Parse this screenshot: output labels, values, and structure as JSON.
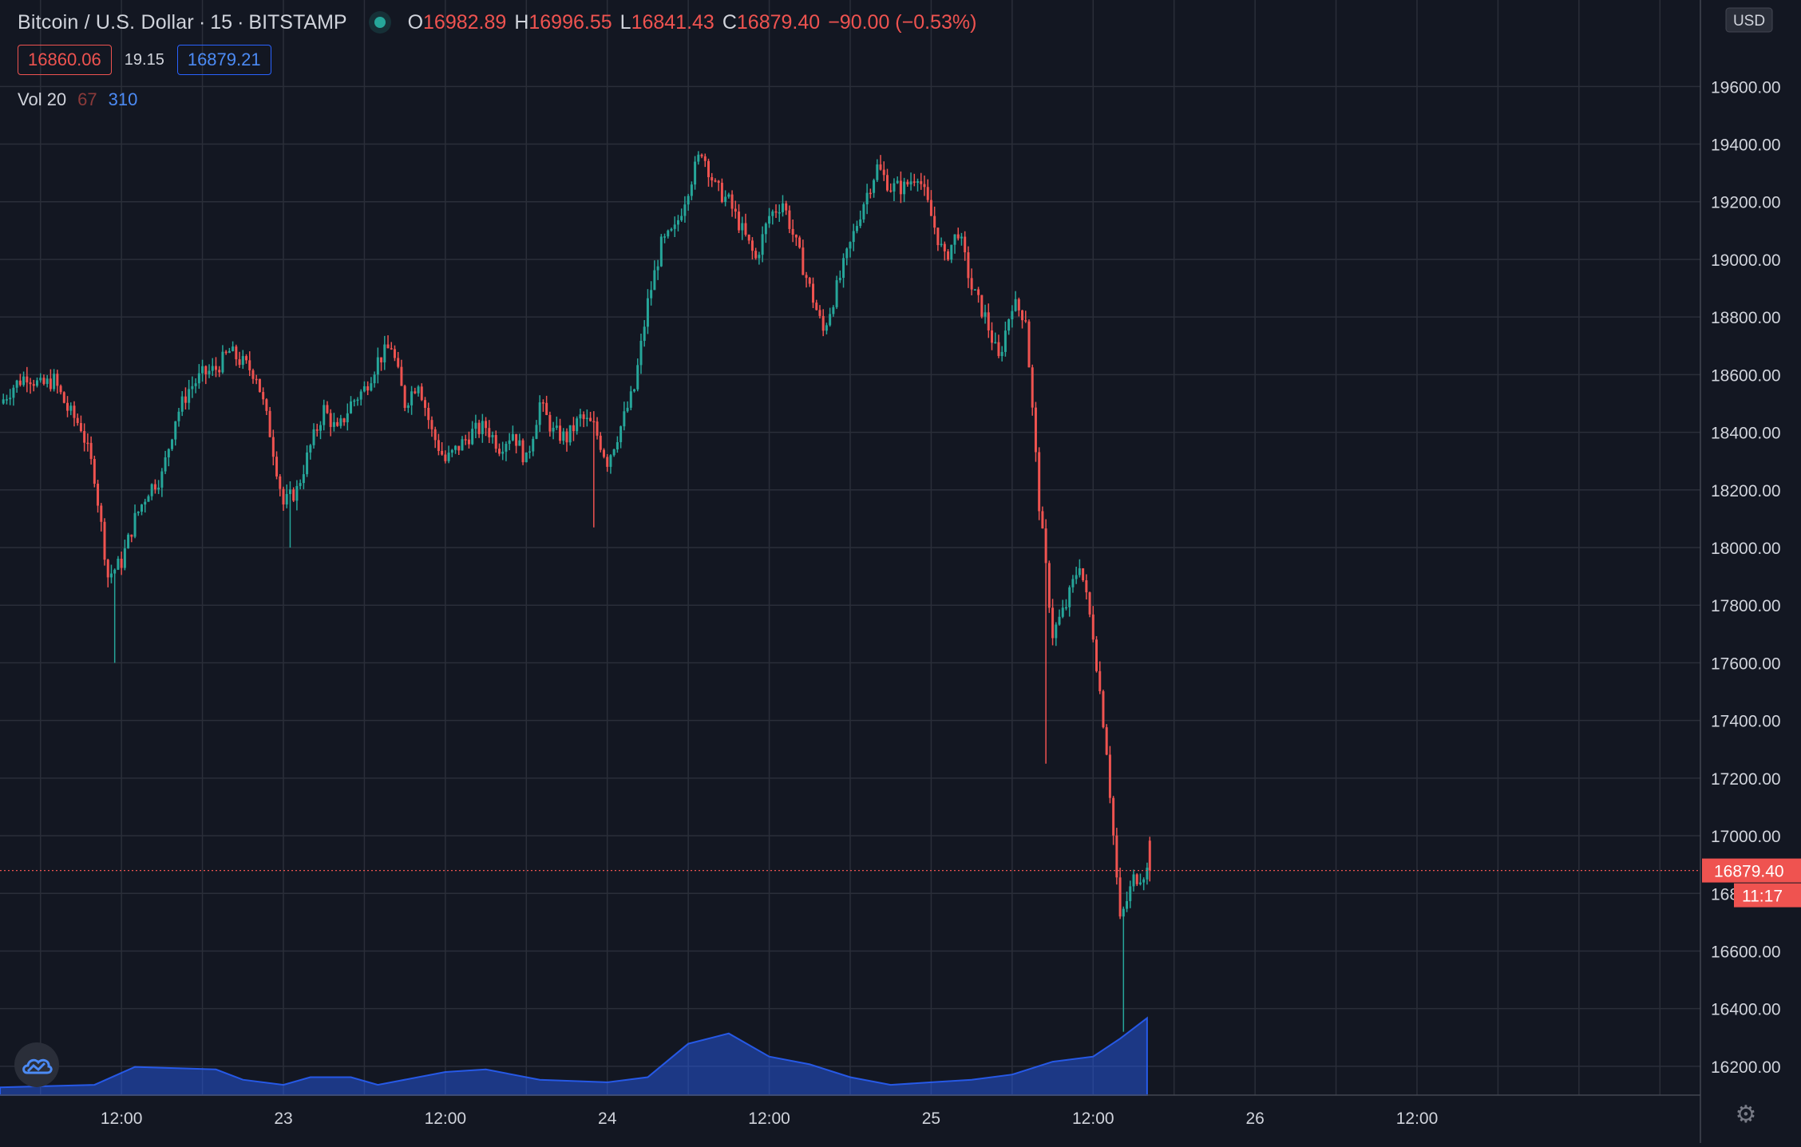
{
  "header": {
    "symbol": "Bitcoin / U.S. Dollar",
    "interval": "15",
    "exchange": "BITSTAMP",
    "open_label": "O",
    "open": "16982.89",
    "high_label": "H",
    "high": "16996.55",
    "low_label": "L",
    "low": "16841.43",
    "close_label": "C",
    "close": "16879.40",
    "change": "−90.00 (−0.53%)"
  },
  "trade": {
    "sell": "16860.06",
    "spread": "19.15",
    "buy": "16879.21"
  },
  "volume_legend": {
    "label": "Vol 20",
    "value1": "67",
    "value2": "310"
  },
  "axis": {
    "currency": "USD",
    "current_price": "16879.40",
    "countdown": "11:17"
  },
  "colors": {
    "up": "#26a69a",
    "down": "#ef5350",
    "volume": "#2962ff",
    "background": "#131722",
    "grid": "#2a2e39"
  },
  "icons": {
    "logo": "tradingview-cloud-icon",
    "settings": "gear-icon"
  },
  "chart_data": {
    "type": "candlestick",
    "ylim": [
      16100,
      19900
    ],
    "yticks": [
      16200,
      16400,
      16600,
      16800,
      17000,
      17200,
      17400,
      17600,
      17800,
      18000,
      18200,
      18400,
      18600,
      18800,
      19000,
      19200,
      19400,
      19600
    ],
    "ytick_labels": [
      "16200.00",
      "16400.00",
      "16600.00",
      "16800.00",
      "17000.00",
      "17200.00",
      "17400.00",
      "17600.00",
      "17800.00",
      "18000.00",
      "18200.00",
      "18400.00",
      "18600.00",
      "18800.00",
      "19000.00",
      "19200.00",
      "19400.00",
      "19600.00"
    ],
    "xtick_labels": [
      "12:00",
      "23",
      "12:00",
      "24",
      "12:00",
      "25",
      "12:00",
      "26",
      "12:00"
    ],
    "x_range_hours": [
      3,
      129
    ],
    "xtick_hours": [
      12,
      24,
      36,
      48,
      60,
      72,
      84,
      96,
      108
    ],
    "price_path": [
      [
        3,
        18500
      ],
      [
        4,
        18560
      ],
      [
        5,
        18600
      ],
      [
        6,
        18560
      ],
      [
        7,
        18580
      ],
      [
        8,
        18480
      ],
      [
        9,
        18420
      ],
      [
        10,
        18250
      ],
      [
        11,
        17900
      ],
      [
        12,
        17950
      ],
      [
        13,
        18100
      ],
      [
        14,
        18200
      ],
      [
        15,
        18250
      ],
      [
        16,
        18450
      ],
      [
        17,
        18550
      ],
      [
        18,
        18600
      ],
      [
        19,
        18620
      ],
      [
        20,
        18680
      ],
      [
        21,
        18640
      ],
      [
        22,
        18600
      ],
      [
        23,
        18400
      ],
      [
        24,
        18150
      ],
      [
        25,
        18200
      ],
      [
        26,
        18350
      ],
      [
        27,
        18480
      ],
      [
        28,
        18400
      ],
      [
        29,
        18500
      ],
      [
        30,
        18550
      ],
      [
        31,
        18650
      ],
      [
        32,
        18700
      ],
      [
        33,
        18500
      ],
      [
        34,
        18580
      ],
      [
        35,
        18400
      ],
      [
        36,
        18300
      ],
      [
        37,
        18350
      ],
      [
        38,
        18400
      ],
      [
        39,
        18420
      ],
      [
        40,
        18350
      ],
      [
        41,
        18400
      ],
      [
        42,
        18300
      ],
      [
        43,
        18500
      ],
      [
        44,
        18400
      ],
      [
        45,
        18380
      ],
      [
        46,
        18450
      ],
      [
        47,
        18420
      ],
      [
        48,
        18300
      ],
      [
        49,
        18420
      ],
      [
        50,
        18550
      ],
      [
        51,
        18850
      ],
      [
        52,
        19050
      ],
      [
        53,
        19100
      ],
      [
        54,
        19250
      ],
      [
        55,
        19380
      ],
      [
        56,
        19250
      ],
      [
        57,
        19200
      ],
      [
        58,
        19100
      ],
      [
        59,
        19000
      ],
      [
        60,
        19150
      ],
      [
        61,
        19200
      ],
      [
        62,
        19050
      ],
      [
        63,
        18900
      ],
      [
        64,
        18750
      ],
      [
        65,
        18900
      ],
      [
        66,
        19050
      ],
      [
        67,
        19200
      ],
      [
        68,
        19320
      ],
      [
        69,
        19250
      ],
      [
        70,
        19250
      ],
      [
        71,
        19300
      ],
      [
        72,
        19150
      ],
      [
        73,
        19000
      ],
      [
        74,
        19100
      ],
      [
        75,
        18900
      ],
      [
        76,
        18800
      ],
      [
        77,
        18650
      ],
      [
        78,
        18850
      ],
      [
        79,
        18800
      ],
      [
        80,
        18150
      ],
      [
        81,
        17700
      ],
      [
        82,
        17800
      ],
      [
        83,
        17950
      ],
      [
        84,
        17700
      ],
      [
        85,
        17300
      ],
      [
        86,
        16700
      ],
      [
        87,
        16850
      ],
      [
        88,
        16879.4
      ]
    ],
    "volume": {
      "series": [
        [
          3,
          6
        ],
        [
          10,
          8
        ],
        [
          13,
          22
        ],
        [
          19,
          20
        ],
        [
          21,
          12
        ],
        [
          24,
          8
        ],
        [
          26,
          14
        ],
        [
          29,
          14
        ],
        [
          31,
          8
        ],
        [
          36,
          18
        ],
        [
          39,
          20
        ],
        [
          43,
          12
        ],
        [
          48,
          10
        ],
        [
          51,
          14
        ],
        [
          54,
          40
        ],
        [
          57,
          48
        ],
        [
          60,
          30
        ],
        [
          63,
          24
        ],
        [
          66,
          14
        ],
        [
          69,
          8
        ],
        [
          72,
          10
        ],
        [
          75,
          12
        ],
        [
          78,
          16
        ],
        [
          81,
          26
        ],
        [
          84,
          30
        ],
        [
          86,
          44
        ],
        [
          88,
          60
        ]
      ],
      "ylim": [
        0,
        200
      ]
    }
  }
}
